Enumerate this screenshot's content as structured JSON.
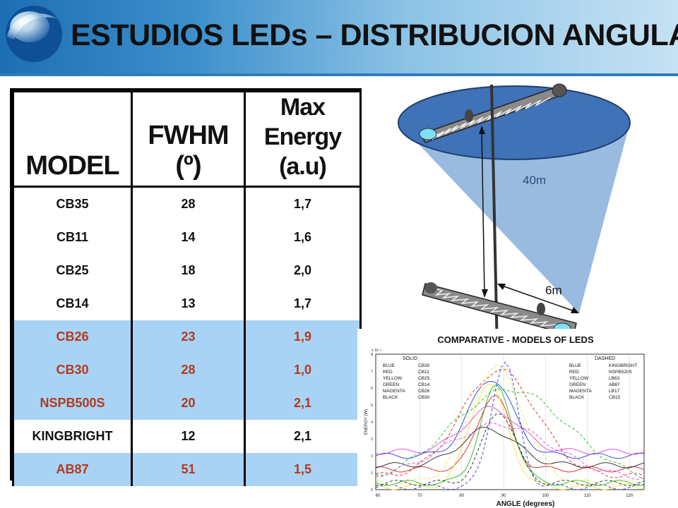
{
  "slide": {
    "title": "ESTUDIOS LEDs – DISTRIBUCION ANGULAR"
  },
  "table": {
    "headers": {
      "model": "MODEL",
      "fwhm": "FWHM (º)",
      "energy_1": "Max Energy",
      "energy_2": "(a.u)"
    },
    "rows": [
      {
        "model": "CB35",
        "fwhm": "28",
        "energy": "1,7",
        "highlight": false
      },
      {
        "model": "CB11",
        "fwhm": "14",
        "energy": "1,6",
        "highlight": false
      },
      {
        "model": "CB25",
        "fwhm": "18",
        "energy": "2,0",
        "highlight": false
      },
      {
        "model": "CB14",
        "fwhm": "13",
        "energy": "1,7",
        "highlight": false
      },
      {
        "model": "CB26",
        "fwhm": "23",
        "energy": "1,9",
        "highlight": true
      },
      {
        "model": "CB30",
        "fwhm": "28",
        "energy": "1,0",
        "highlight": true
      },
      {
        "model": "NSPB500S",
        "fwhm": "20",
        "energy": "2,1",
        "highlight": true
      },
      {
        "model": "KINGBRIGHT",
        "fwhm": "12",
        "energy": "2,1",
        "highlight": false
      },
      {
        "model": "AB87",
        "fwhm": "51",
        "energy": "1,5",
        "highlight": true
      }
    ]
  },
  "diagram": {
    "distance_label": "40m",
    "width_label": "6m",
    "colors": {
      "disk": "#3f72b6",
      "cone": "#8fb4dd"
    }
  },
  "plot": {
    "title": "COMPARATIVE - MODELS OF LEDS",
    "solid_label": "SOLID",
    "dashed_label": "DASHED",
    "solid_legend": [
      {
        "color": "BLUE",
        "model": "CB35"
      },
      {
        "color": "RED",
        "model": "CB11"
      },
      {
        "color": "YELLOW",
        "model": "CB25"
      },
      {
        "color": "GREEN",
        "model": "CB14"
      },
      {
        "color": "MAGENTA",
        "model": "CB26"
      },
      {
        "color": "BLACK",
        "model": "CB30"
      }
    ],
    "dashed_legend": [
      {
        "color": "BLUE",
        "model": "KINGBRIGHT"
      },
      {
        "color": "RED",
        "model": "NSPB520S"
      },
      {
        "color": "YELLOW",
        "model": "LB63"
      },
      {
        "color": "GREEN",
        "model": "AB87"
      },
      {
        "color": "MAGENTA",
        "model": "LB17"
      },
      {
        "color": "BLACK",
        "model": "CB15"
      }
    ],
    "xlabel": "ANGLE  (degrees)",
    "ylabel": "ENERGY (W)",
    "y_exponent": "x 10⁻⁶",
    "x_ticks": [
      "60",
      "70",
      "80",
      "90",
      "100",
      "110",
      "120"
    ],
    "y_ticks": [
      "0",
      "1",
      "2",
      "3",
      "4",
      "5",
      "6",
      "7",
      "8"
    ]
  }
}
